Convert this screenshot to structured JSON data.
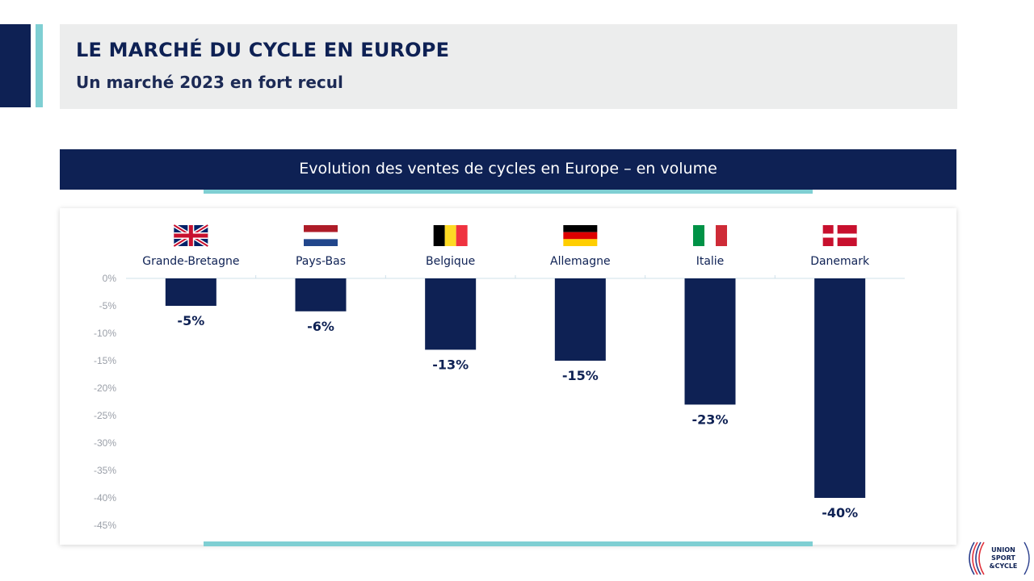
{
  "header": {
    "title": "LE MARCHÉ DU CYCLE EN EUROPE",
    "subtitle": "Un marché 2023 en fort recul"
  },
  "chart_data": {
    "type": "bar",
    "title": "Evolution des ventes de cycles en Europe – en volume",
    "categories": [
      "Grande-Bretagne",
      "Pays-Bas",
      "Belgique",
      "Allemagne",
      "Italie",
      "Danemark"
    ],
    "values": [
      -5,
      -6,
      -13,
      -15,
      -23,
      -40
    ],
    "value_labels": [
      "-5%",
      "-6%",
      "-13%",
      "-15%",
      "-23%",
      "-40%"
    ],
    "flags": [
      "uk-flag-icon",
      "netherlands-flag-icon",
      "belgium-flag-icon",
      "germany-flag-icon",
      "italy-flag-icon",
      "denmark-flag-icon"
    ],
    "y_ticks": [
      "0%",
      "-5%",
      "-10%",
      "-15%",
      "-20%",
      "-25%",
      "-30%",
      "-35%",
      "-40%",
      "-45%"
    ],
    "ylim": [
      -45,
      0
    ],
    "bar_color": "#0e2154",
    "grid": false,
    "legend": "none"
  },
  "logo": {
    "text_lines": [
      "UNION",
      "SPORT",
      "&CYCLE"
    ]
  },
  "colors": {
    "navy": "#0e2154",
    "accent_teal": "#7fcfd3",
    "title_box": "#eceded"
  }
}
